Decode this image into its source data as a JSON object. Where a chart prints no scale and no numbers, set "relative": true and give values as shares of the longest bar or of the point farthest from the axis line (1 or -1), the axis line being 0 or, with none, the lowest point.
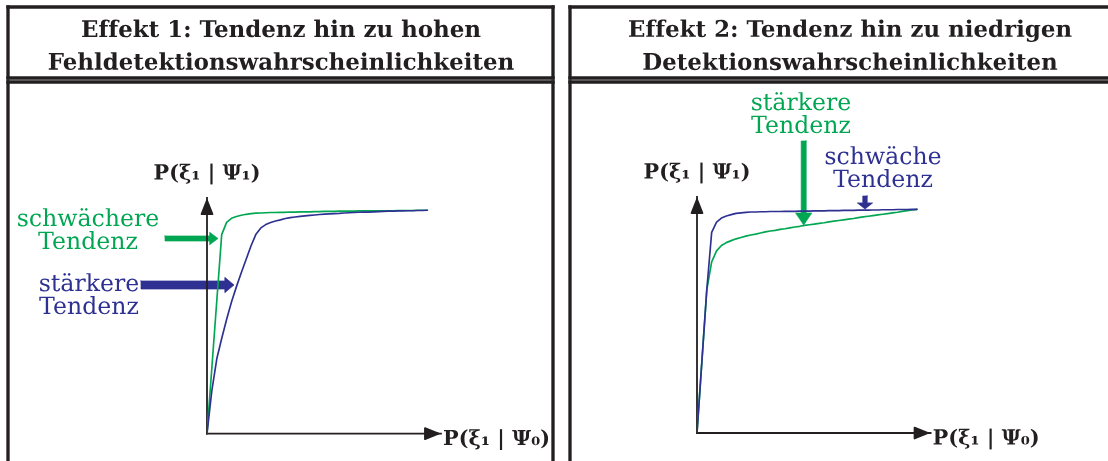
{
  "chart_data": [
    {
      "type": "line",
      "relative": true,
      "title": "Effekt 1: Tendenz hin zu hohen\nFehldetektionswahrscheinlichkeiten",
      "xlabel": "P(ξ₁ | Ψ₀)",
      "ylabel": "P(ξ₁ | Ψ₁)",
      "categories": [
        null,
        null,
        null,
        null,
        null,
        null,
        null,
        null,
        null,
        null,
        null,
        null,
        null,
        null,
        null,
        null,
        null,
        null,
        null,
        null,
        null,
        null,
        null,
        null,
        null,
        null,
        null,
        null,
        null,
        null,
        null,
        null,
        null,
        null,
        null,
        null,
        null,
        null,
        null,
        null,
        null,
        null,
        null,
        null,
        null,
        null
      ],
      "series": [
        {
          "color": "#00a651",
          "values": [
            0,
            0.297,
            0.595,
            0.891,
            0.946,
            0.964,
            0.972,
            0.978,
            0.982,
            0.985,
            0.987,
            0.988,
            0.989,
            0.99,
            0.99,
            0.991,
            0.991,
            0.992,
            0.992,
            0.993,
            0.993,
            0.993,
            0.994,
            0.994,
            0.995,
            0.995,
            0.995,
            0.996,
            0.996,
            0.996,
            0.996,
            0.997,
            0.997,
            0.997,
            0.997,
            0.998,
            0.998,
            0.998,
            0.998,
            0.999,
            0.999,
            0.999,
            0.999,
            1.0,
            1.0,
            1.0
          ]
        },
        {
          "color": "#2e3192",
          "values": [
            0,
            0.194,
            0.335,
            0.426,
            0.511,
            0.589,
            0.657,
            0.72,
            0.781,
            0.841,
            0.893,
            0.921,
            0.936,
            0.945,
            0.952,
            0.957,
            0.963,
            0.967,
            0.97,
            0.973,
            0.975,
            0.977,
            0.979,
            0.981,
            0.983,
            0.984,
            0.985,
            0.986,
            0.988,
            0.989,
            0.99,
            0.991,
            0.992,
            0.992,
            0.993,
            0.994,
            0.995,
            0.996,
            0.996,
            0.997,
            0.997,
            0.998,
            0.998,
            0.999,
            0.999,
            1.0
          ]
        }
      ],
      "annotations": [
        "schwächere\nTendenz",
        "stärkere\nTendenz"
      ]
    },
    {
      "type": "line",
      "relative": true,
      "title": "Effekt 2: Tendenz hin zu niedrigen\nDetektionswahrscheinlichkeiten",
      "xlabel": "P(ξ₁ | Ψ₀)",
      "ylabel": "P(ξ₁ | Ψ₁)",
      "categories": [
        null,
        null,
        null,
        null,
        null,
        null,
        null,
        null,
        null,
        null,
        null,
        null,
        null,
        null,
        null,
        null,
        null,
        null,
        null,
        null,
        null,
        null,
        null,
        null,
        null,
        null,
        null,
        null,
        null,
        null,
        null,
        null,
        null,
        null,
        null,
        null,
        null,
        null,
        null,
        null,
        null,
        null,
        null,
        null,
        null,
        null
      ],
      "series": [
        {
          "color": "#00a651",
          "values": [
            0,
            0.32,
            0.639,
            0.765,
            0.814,
            0.838,
            0.851,
            0.86,
            0.868,
            0.874,
            0.88,
            0.885,
            0.889,
            0.894,
            0.899,
            0.903,
            0.906,
            0.91,
            0.913,
            0.917,
            0.921,
            0.924,
            0.928,
            0.931,
            0.934,
            0.937,
            0.94,
            0.944,
            0.947,
            0.95,
            0.953,
            0.956,
            0.959,
            0.963,
            0.966,
            0.969,
            0.972,
            0.975,
            0.978,
            0.981,
            0.984,
            0.987,
            0.991,
            0.994,
            0.997,
            1.0
          ]
        },
        {
          "color": "#2e3192",
          "values": [
            0,
            0.32,
            0.639,
            0.897,
            0.943,
            0.961,
            0.97,
            0.976,
            0.982,
            0.984,
            0.986,
            0.988,
            0.988,
            0.989,
            0.989,
            0.99,
            0.99,
            0.99,
            0.991,
            0.991,
            0.991,
            0.992,
            0.992,
            0.992,
            0.993,
            0.993,
            0.993,
            0.994,
            0.994,
            0.994,
            0.995,
            0.995,
            0.995,
            0.996,
            0.996,
            0.996,
            0.997,
            0.997,
            0.998,
            0.998,
            0.998,
            0.999,
            0.999,
            0.999,
            1.0,
            1.0
          ]
        }
      ],
      "annotations": [
        "stärkere\nTendenz",
        "schwäche\nTendenz"
      ]
    }
  ]
}
